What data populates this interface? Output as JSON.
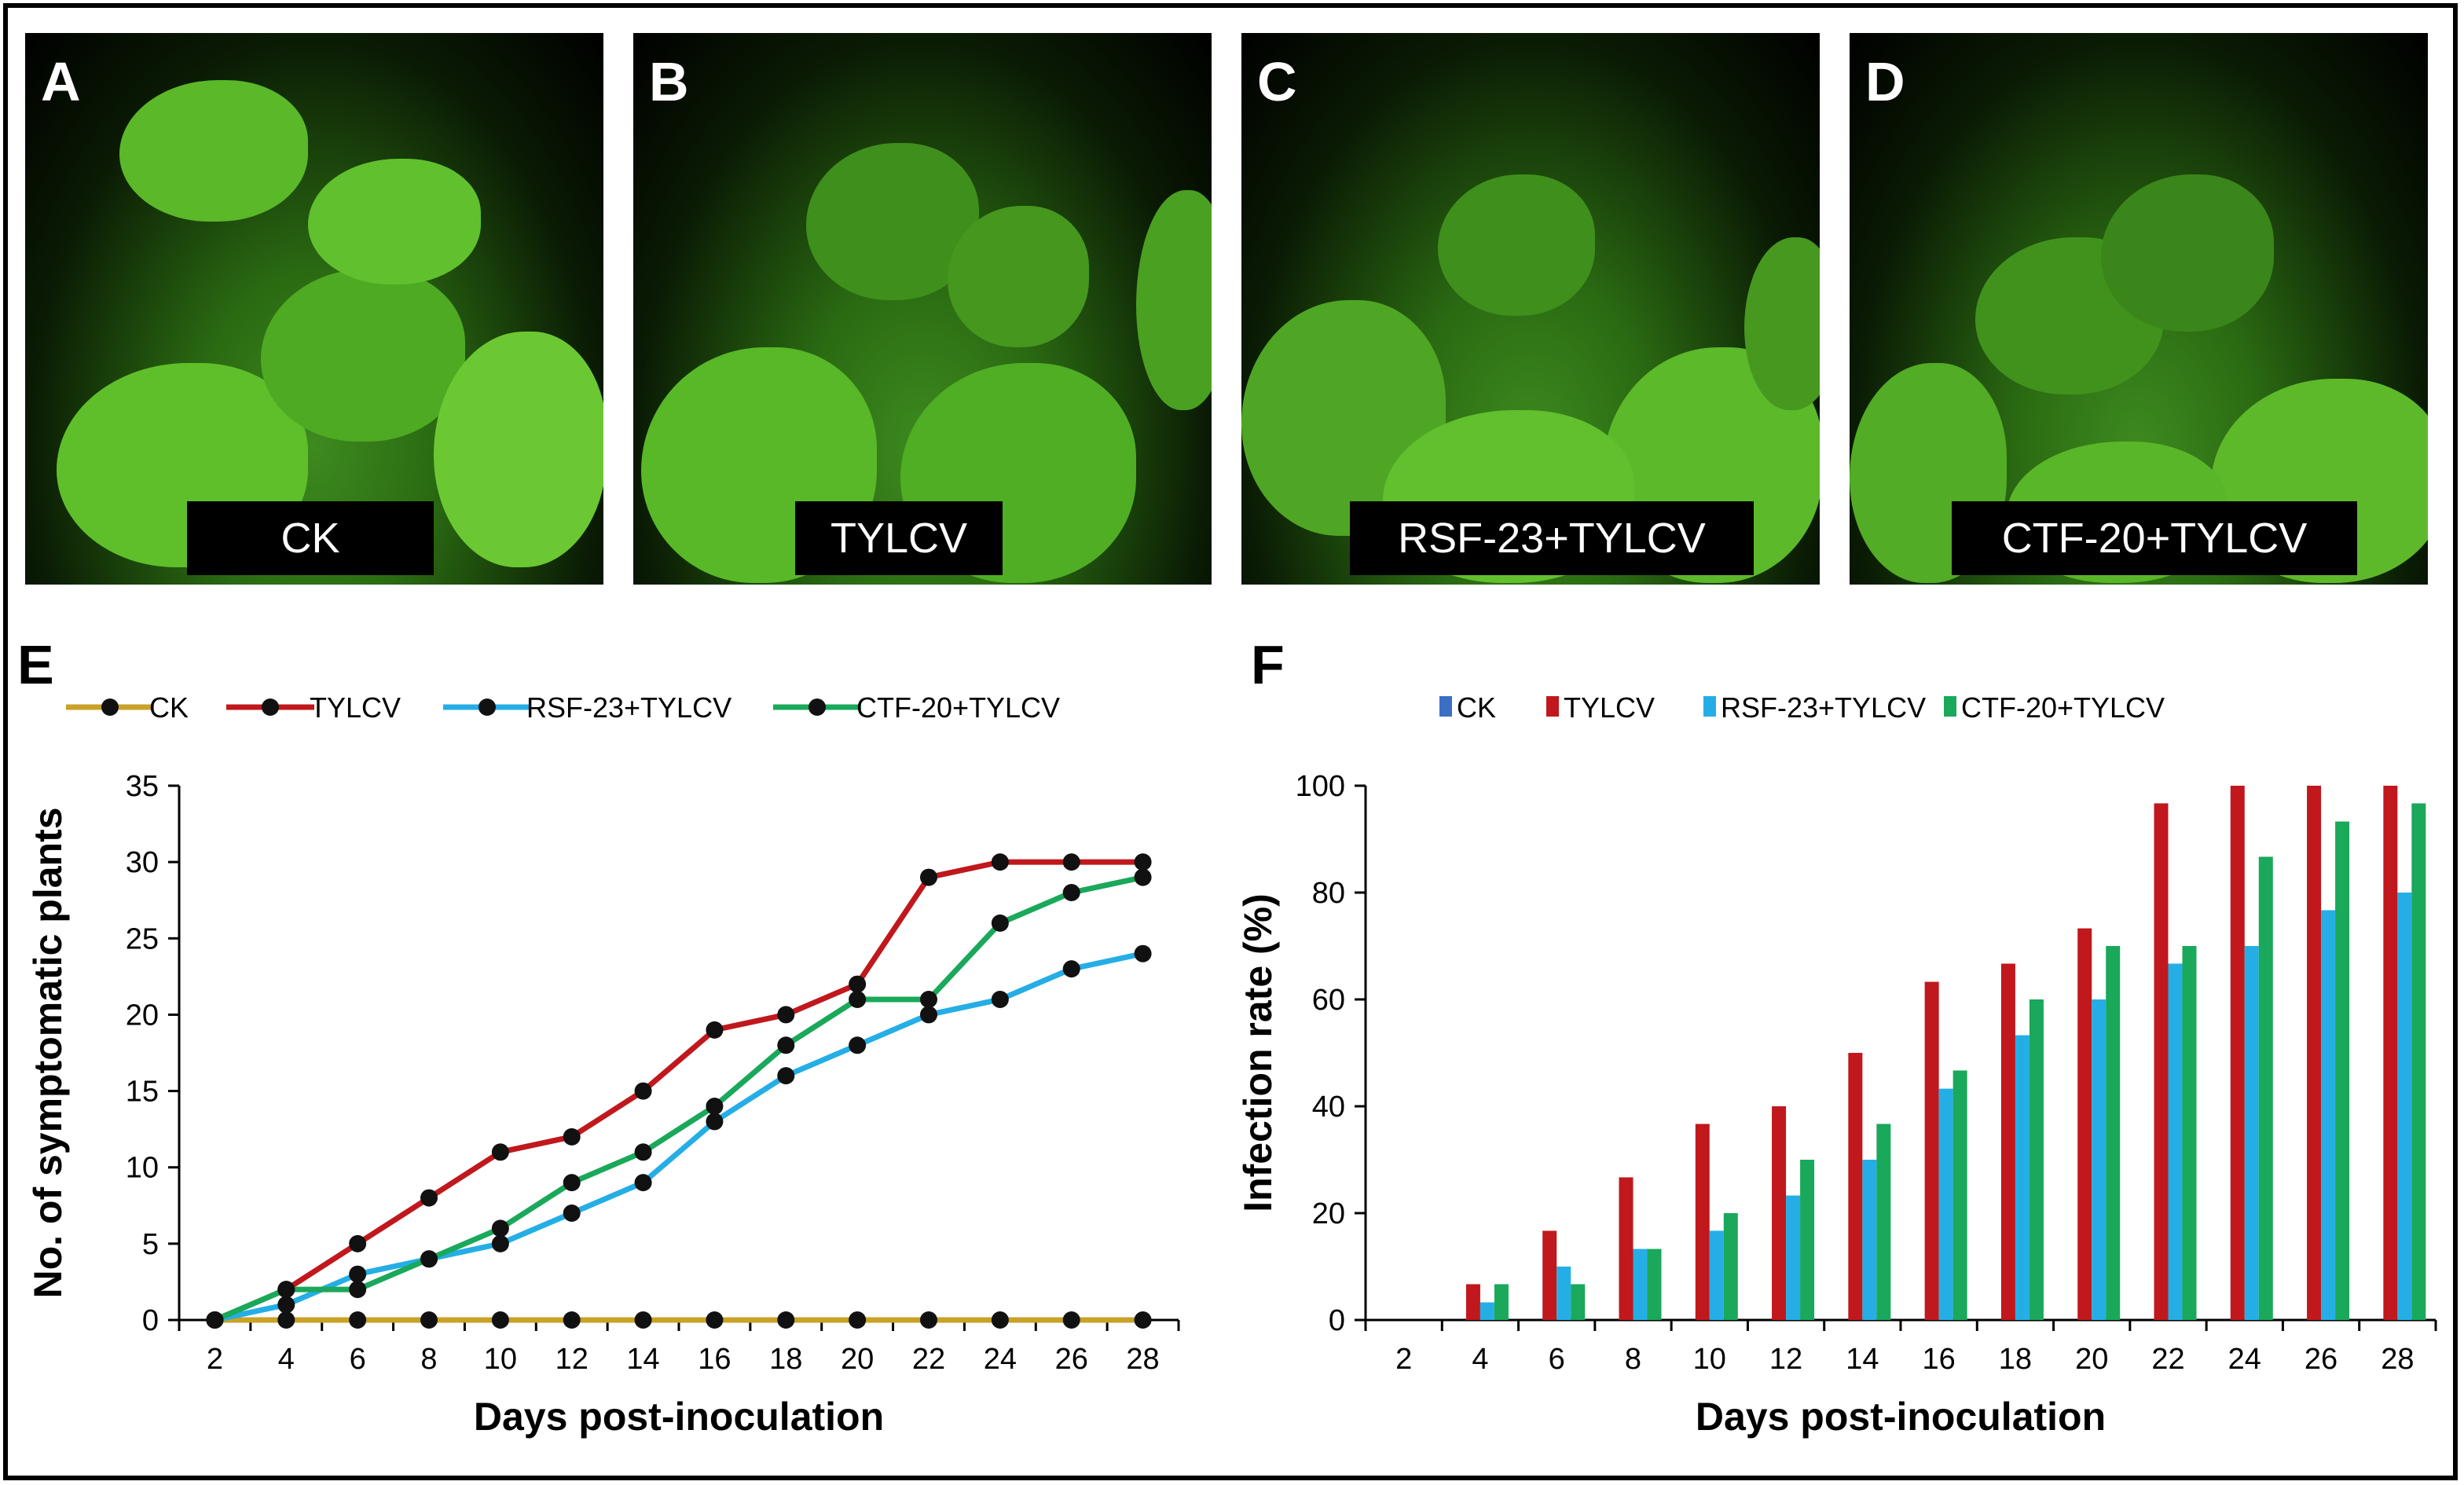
{
  "panels": {
    "A": {
      "letter": "A",
      "label": "CK"
    },
    "B": {
      "letter": "B",
      "label": "TYLCV"
    },
    "C": {
      "letter": "C",
      "label": "RSF-23+TYLCV"
    },
    "D": {
      "letter": "D",
      "label": "CTF-20+TYLCV"
    },
    "E": {
      "letter": "E"
    },
    "F": {
      "letter": "F"
    }
  },
  "colors": {
    "CK_line": "#c9a227",
    "TYLCV": "#c0181c",
    "RSF": "#25aee6",
    "CTF": "#1aa85a",
    "CK_bar": "#3a6fc4",
    "marker": "#111111"
  },
  "chart_data": [
    {
      "type": "line",
      "ylabel": "No. of symptomatic plants",
      "xlabel": "Days post-inoculation",
      "x": [
        2,
        4,
        6,
        8,
        10,
        12,
        14,
        16,
        18,
        20,
        22,
        24,
        26,
        28
      ],
      "ylim": [
        0,
        35
      ],
      "yticks": [
        0,
        5,
        10,
        15,
        20,
        25,
        30,
        35
      ],
      "legend_position": "top",
      "series": [
        {
          "name": "CK",
          "values": [
            0,
            0,
            0,
            0,
            0,
            0,
            0,
            0,
            0,
            0,
            0,
            0,
            0,
            0
          ]
        },
        {
          "name": "TYLCV",
          "values": [
            0,
            2,
            5,
            8,
            11,
            12,
            15,
            19,
            20,
            22,
            29,
            30,
            30,
            30
          ]
        },
        {
          "name": "RSF-23+TYLCV",
          "values": [
            0,
            1,
            3,
            4,
            5,
            7,
            9,
            13,
            16,
            18,
            20,
            21,
            23,
            24
          ]
        },
        {
          "name": "CTF-20+TYLCV",
          "values": [
            0,
            2,
            2,
            4,
            6,
            9,
            11,
            14,
            18,
            21,
            21,
            26,
            28,
            29
          ]
        }
      ]
    },
    {
      "type": "bar",
      "ylabel": "Infection rate (%)",
      "xlabel": "Days post-inoculation",
      "categories": [
        "2",
        "4",
        "6",
        "8",
        "10",
        "12",
        "14",
        "16",
        "18",
        "20",
        "22",
        "24",
        "26",
        "28"
      ],
      "ylim": [
        0,
        100
      ],
      "yticks": [
        0,
        20,
        40,
        60,
        80,
        100
      ],
      "legend_position": "top",
      "series": [
        {
          "name": "CK",
          "values": [
            0,
            0,
            0,
            0,
            0,
            0,
            0,
            0,
            0,
            0,
            0,
            0,
            0,
            0
          ]
        },
        {
          "name": "TYLCV",
          "values": [
            0,
            6.7,
            16.7,
            26.7,
            36.7,
            40,
            50,
            63.3,
            66.7,
            73.3,
            96.7,
            100,
            100,
            100
          ]
        },
        {
          "name": "RSF-23+TYLCV",
          "values": [
            0,
            3.3,
            10,
            13.3,
            16.7,
            23.3,
            30,
            43.3,
            53.3,
            60,
            66.7,
            70,
            76.7,
            80
          ]
        },
        {
          "name": "CTF-20+TYLCV",
          "values": [
            0,
            6.7,
            6.7,
            13.3,
            20,
            30,
            36.7,
            46.7,
            60,
            70,
            70,
            86.7,
            93.3,
            96.7
          ]
        }
      ]
    }
  ]
}
